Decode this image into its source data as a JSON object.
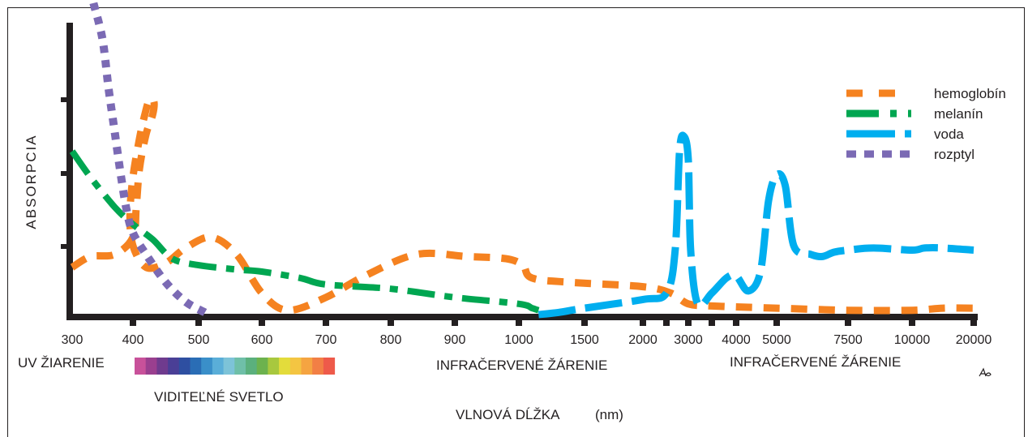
{
  "chart_data": {
    "type": "line",
    "ylabel": "ABSORPCIA",
    "xlabel": "VLNOVÁ  DĹŽKA",
    "xunit": "(nm)",
    "region_labels": {
      "uv": "UV ŽIARENIE",
      "visible": "VIDITEĽNÉ  SVETLO",
      "infrared_1": "INFRAČERVENÉ ŽÁRENIE",
      "infrared_2": "INFRAČERVENÉ ŽÁRENIE"
    },
    "x_ticks": [
      "300",
      "400",
      "500",
      "600",
      "700",
      "800",
      "900",
      "1000",
      "1500",
      "2000",
      "2500",
      "3000",
      "3500",
      "4000",
      "5000",
      "7500",
      "10000",
      "20000"
    ],
    "x_tick_labels": [
      "300",
      "400",
      "500",
      "600",
      "700",
      "800",
      "900",
      "1000",
      "1500",
      "2000",
      "3000",
      "4000",
      "5000",
      "7500",
      "10000",
      "20000"
    ],
    "y_ticks": 4,
    "legend_position": "top-right",
    "spectrum_colors": [
      "#c8519a",
      "#9a3f8f",
      "#6f3b8e",
      "#4a3f96",
      "#2e4fa1",
      "#2a6db5",
      "#3a8fc9",
      "#5aaed8",
      "#7dc3d8",
      "#6fbfa8",
      "#5bb07d",
      "#6cb24e",
      "#a8c83e",
      "#e3dc3b",
      "#f4c542",
      "#f5a441",
      "#f27f45",
      "#ee5a4a"
    ],
    "series": [
      {
        "name": "hemoglobín",
        "color": "#f58220",
        "dash": "dash",
        "x": [
          300,
          330,
          370,
          400,
          405,
          410,
          420,
          430,
          432,
          425,
          418,
          410,
          400,
          395,
          400,
          420,
          450,
          480,
          520,
          560,
          600,
          640,
          700,
          760,
          840,
          920,
          980,
          1030,
          1100,
          1400,
          2000,
          2600,
          3000,
          3500,
          5000,
          7500,
          10000,
          15000,
          20000
        ],
        "y": [
          0.22,
          0.27,
          0.28,
          0.36,
          0.5,
          0.68,
          0.84,
          0.93,
          0.99,
          1.0,
          0.93,
          0.82,
          0.64,
          0.46,
          0.32,
          0.22,
          0.24,
          0.31,
          0.36,
          0.28,
          0.1,
          0.02,
          0.08,
          0.18,
          0.28,
          0.27,
          0.26,
          0.23,
          0.17,
          0.15,
          0.13,
          0.1,
          0.05,
          0.04,
          0.03,
          0.02,
          0.02,
          0.03,
          0.03
        ]
      },
      {
        "name": "melanín",
        "color": "#00a651",
        "dash": "dashdot",
        "x": [
          300,
          330,
          370,
          400,
          430,
          460,
          500,
          560,
          600,
          660,
          700,
          800,
          900,
          1000,
          1100,
          1150
        ],
        "y": [
          0.76,
          0.64,
          0.5,
          0.42,
          0.35,
          0.26,
          0.23,
          0.21,
          0.2,
          0.17,
          0.14,
          0.12,
          0.08,
          0.05,
          0.03,
          0.02
        ]
      },
      {
        "name": "voda",
        "color": "#00aeef",
        "dash": "longdash",
        "x": [
          1150,
          1300,
          1500,
          2000,
          2500,
          2700,
          2800,
          2900,
          3000,
          3050,
          3200,
          3500,
          3800,
          4000,
          4300,
          4600,
          4800,
          5000,
          5300,
          5600,
          6200,
          6600,
          7000,
          7500,
          8500,
          10000,
          12000,
          15000,
          20000
        ],
        "y": [
          0.0,
          0.01,
          0.03,
          0.07,
          0.1,
          0.3,
          0.76,
          0.83,
          0.72,
          0.3,
          0.05,
          0.1,
          0.17,
          0.18,
          0.11,
          0.2,
          0.53,
          0.65,
          0.6,
          0.32,
          0.28,
          0.27,
          0.29,
          0.3,
          0.31,
          0.3,
          0.31,
          0.31,
          0.3
        ]
      },
      {
        "name": "rozptyl",
        "color": "#7b6ab4",
        "dash": "dot",
        "x": [
          335,
          350,
          360,
          370,
          380,
          390,
          400,
          420,
          450,
          480,
          510
        ],
        "y": [
          1.45,
          1.28,
          1.05,
          0.85,
          0.65,
          0.48,
          0.38,
          0.28,
          0.15,
          0.06,
          0.01
        ]
      }
    ]
  }
}
